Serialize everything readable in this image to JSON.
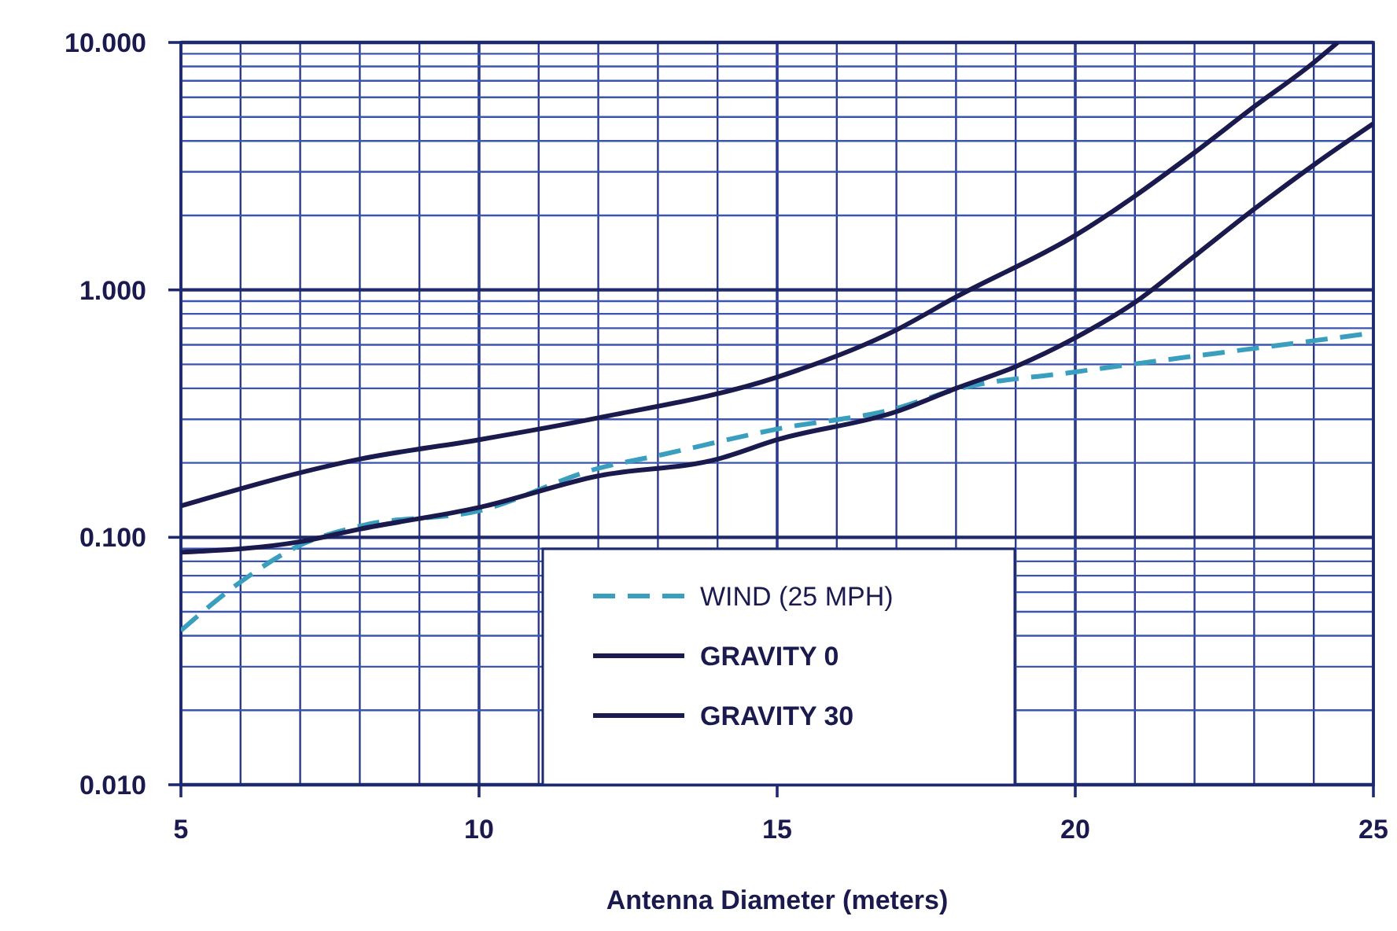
{
  "chart_data": {
    "type": "line",
    "xlabel": "Antenna Diameter (meters)",
    "log": "y",
    "grid": true,
    "legend": "bottom",
    "xlim": [
      5,
      25
    ],
    "ylim": [
      0.01,
      10
    ],
    "xticks": [
      5,
      {
        "value": 6,
        "label": null
      },
      {
        "value": 7,
        "label": null
      },
      {
        "value": 8,
        "label": null
      },
      {
        "value": 9,
        "label": null
      },
      10,
      {
        "value": 11,
        "label": null
      },
      {
        "value": 12,
        "label": null
      },
      {
        "value": 13,
        "label": null
      },
      {
        "value": 14,
        "label": null
      },
      15,
      {
        "value": 16,
        "label": null
      },
      {
        "value": 17,
        "label": null
      },
      {
        "value": 18,
        "label": null
      },
      {
        "value": 19,
        "label": null
      },
      20,
      {
        "value": 21,
        "label": null
      },
      {
        "value": 22,
        "label": null
      },
      {
        "value": 23,
        "label": null
      },
      {
        "value": 24,
        "label": null
      },
      25
    ],
    "yticks": [
      {
        "value": 0.01,
        "label": "0.010"
      },
      {
        "value": 0.02,
        "label": null
      },
      {
        "value": 0.03,
        "label": null
      },
      {
        "value": 0.04,
        "label": null
      },
      {
        "value": 0.05,
        "label": null
      },
      {
        "value": 0.06,
        "label": null
      },
      {
        "value": 0.07,
        "label": null
      },
      {
        "value": 0.08,
        "label": null
      },
      {
        "value": 0.09,
        "label": null
      },
      {
        "value": 0.1,
        "label": "0.100"
      },
      {
        "value": 0.2,
        "label": null
      },
      {
        "value": 0.3,
        "label": null
      },
      {
        "value": 0.4,
        "label": null
      },
      {
        "value": 0.5,
        "label": null
      },
      {
        "value": 0.6,
        "label": null
      },
      {
        "value": 0.7,
        "label": null
      },
      {
        "value": 0.8,
        "label": null
      },
      {
        "value": 0.9,
        "label": null
      },
      {
        "value": 1,
        "label": "1.000"
      },
      {
        "value": 2,
        "label": null
      },
      {
        "value": 3,
        "label": null
      },
      {
        "value": 4,
        "label": null
      },
      {
        "value": 5,
        "label": null
      },
      {
        "value": 6,
        "label": null
      },
      {
        "value": 7,
        "label": null
      },
      {
        "value": 8,
        "label": null
      },
      {
        "value": 9,
        "label": null
      },
      {
        "value": 10,
        "label": "10.000"
      }
    ],
    "series": [
      {
        "name": "WIND (25 MPH)",
        "color": "#3a9fbf",
        "line_style": "dashed",
        "x": [
          5,
          6,
          7,
          8,
          10,
          12,
          13,
          15,
          17,
          18,
          20,
          22,
          23,
          25
        ],
        "values": [
          0.042,
          0.066,
          0.093,
          0.111,
          0.128,
          0.19,
          0.214,
          0.274,
          0.332,
          0.396,
          0.466,
          0.54,
          0.58,
          0.67
        ]
      },
      {
        "name": "GRAVITY 0",
        "color": "#1a1a4e",
        "line_style": "solid",
        "x": [
          5,
          7,
          8,
          10,
          12,
          14,
          15,
          17,
          18,
          19,
          20,
          21,
          22,
          23,
          24,
          25
        ],
        "values": [
          0.087,
          0.096,
          0.108,
          0.132,
          0.177,
          0.207,
          0.248,
          0.322,
          0.4,
          0.49,
          0.64,
          0.89,
          1.37,
          2.12,
          3.2,
          4.7
        ]
      },
      {
        "name": "GRAVITY 30",
        "color": "#1a1a4e",
        "line_style": "solid",
        "x": [
          5,
          8,
          10,
          12,
          15,
          17,
          18,
          20,
          22,
          23,
          24,
          24.4
        ],
        "values": [
          0.134,
          0.207,
          0.248,
          0.304,
          0.444,
          0.689,
          0.936,
          1.66,
          3.59,
          5.5,
          8.3,
          10
        ]
      }
    ]
  }
}
